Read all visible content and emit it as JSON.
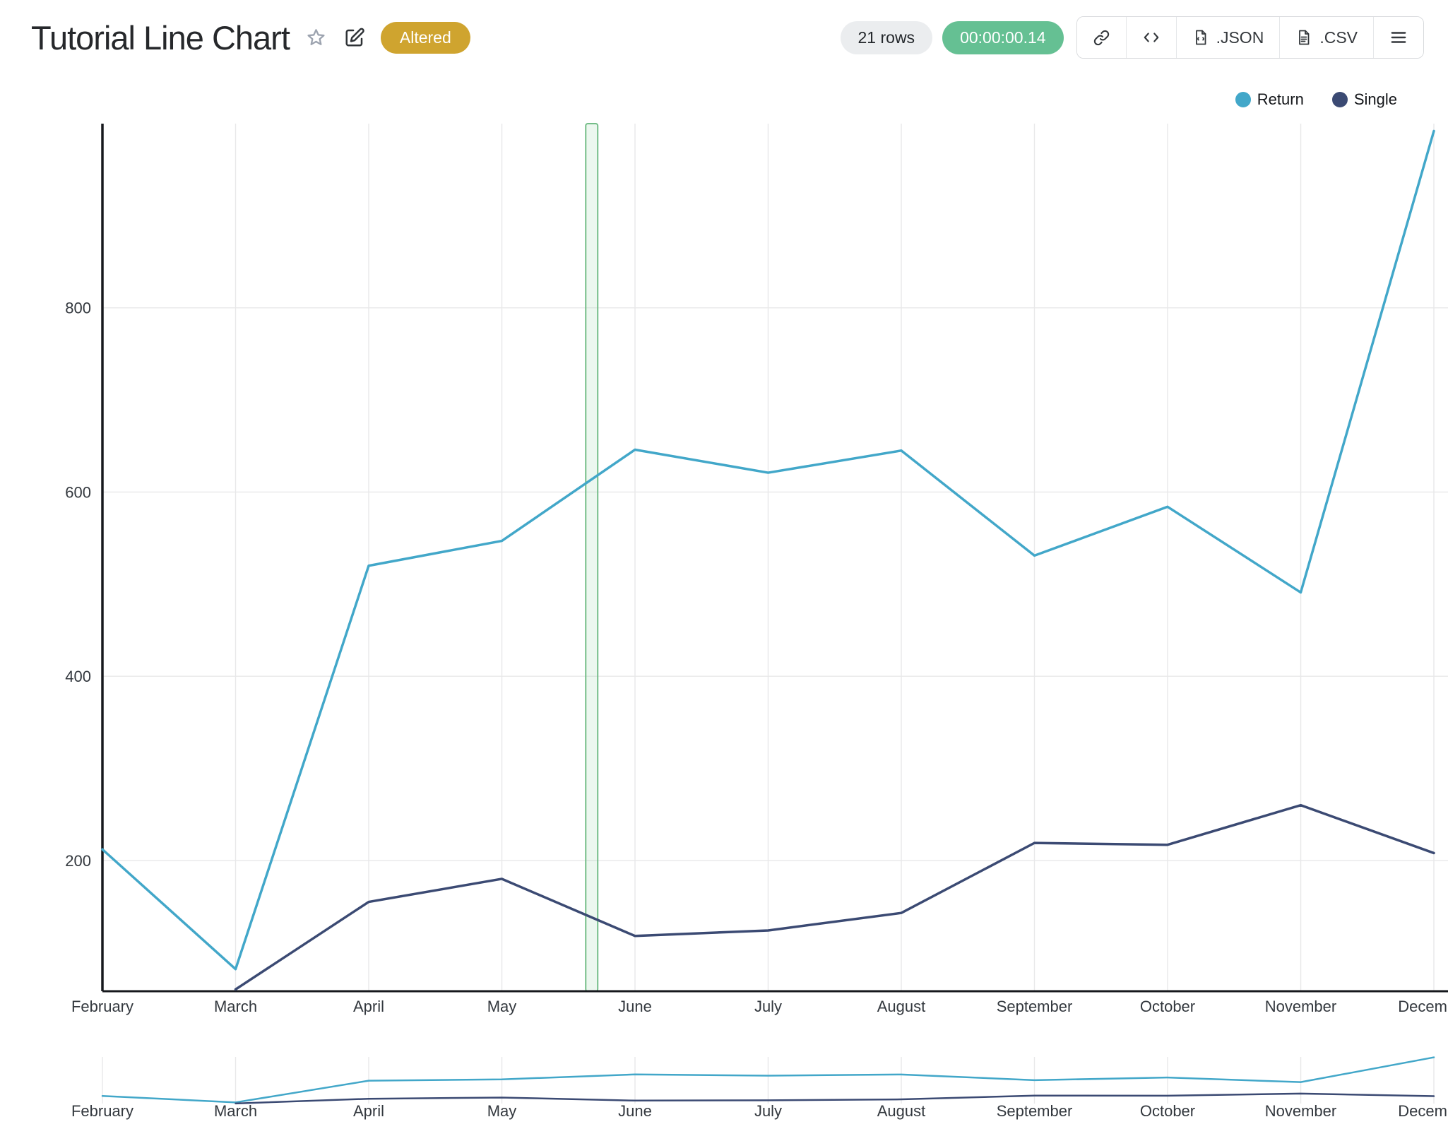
{
  "header": {
    "title": "Tutorial Line Chart",
    "altered_badge": "Altered",
    "rows_badge": "21 rows",
    "timer": "00:00:00.14",
    "export_json_label": ".JSON",
    "export_csv_label": ".CSV",
    "icons": [
      "star-icon",
      "edit-icon",
      "link-icon",
      "code-icon",
      "file-json-icon",
      "file-csv-icon",
      "menu-icon"
    ]
  },
  "colors": {
    "altered_badge_bg": "#cfa42f",
    "timer_bg": "#65c093",
    "rows_bg": "#ebedef",
    "grid": "#e8e8e9",
    "axis": "#16181d",
    "tick_text": "#33383e",
    "band_fill": "rgba(120,195,140,0.14)",
    "band_stroke": "#74bd88"
  },
  "chart_data": {
    "type": "line",
    "title": "Tutorial Line Chart",
    "categories": [
      "February",
      "March",
      "April",
      "May",
      "June",
      "July",
      "August",
      "September",
      "October",
      "November",
      "December"
    ],
    "series": [
      {
        "name": "Return",
        "color": "#42a7c9",
        "values": [
          212,
          82,
          520,
          547,
          646,
          621,
          645,
          531,
          584,
          491,
          992
        ]
      },
      {
        "name": "Single",
        "color": "#3b4a73",
        "values": [
          null,
          60,
          155,
          180,
          118,
          124,
          143,
          219,
          217,
          260,
          208
        ]
      }
    ],
    "xlabel": "",
    "ylabel": "",
    "ylim": [
      58,
      1000
    ],
    "yticks": [
      200,
      400,
      600,
      800
    ],
    "grid": true,
    "legend_position": "top-right",
    "selection_band": {
      "from_frac": 0.363,
      "to_frac": 0.372
    },
    "mini_chart": true
  }
}
